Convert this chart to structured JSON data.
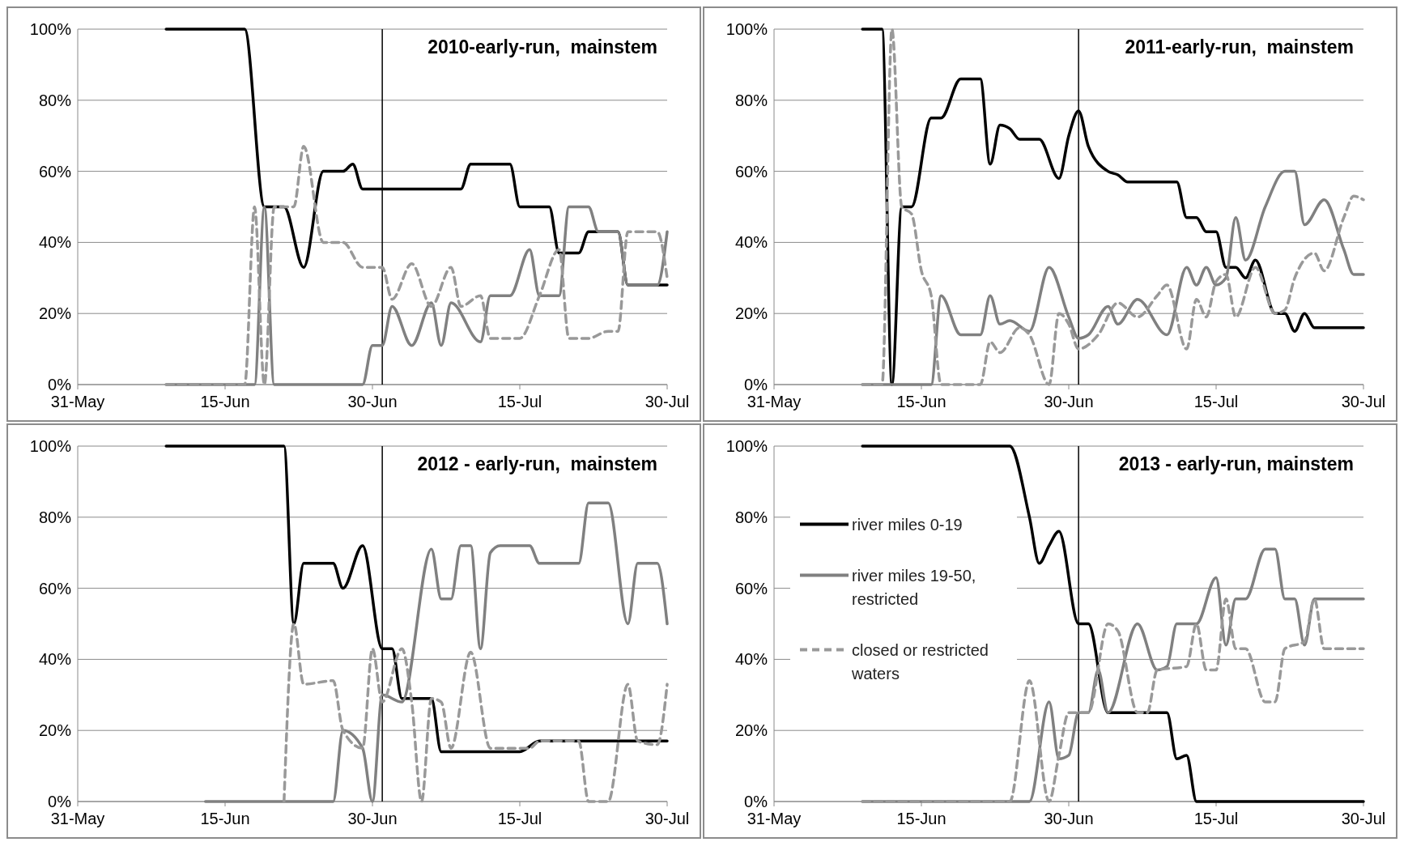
{
  "chart_data": [
    {
      "type": "line",
      "title": "2010-early-run,  mainstem",
      "xlim": [
        "--05-31",
        "--07-30"
      ],
      "xticks": [
        {
          "value": "--05-31",
          "label": "31-May"
        },
        {
          "value": "--06-15",
          "label": "15-Jun"
        },
        {
          "value": "--06-30",
          "label": "30-Jun"
        },
        {
          "value": "--07-15",
          "label": "15-Jul"
        },
        {
          "value": "--07-30",
          "label": "30-Jul"
        }
      ],
      "ylim": [
        0,
        100
      ],
      "yticks": [
        {
          "value": 0,
          "label": "0%"
        },
        {
          "value": 20,
          "label": "20%"
        },
        {
          "value": 40,
          "label": "40%"
        },
        {
          "value": 60,
          "label": "60%"
        },
        {
          "value": 80,
          "label": "80%"
        },
        {
          "value": 100,
          "label": "100%"
        }
      ],
      "grid": "y",
      "legend": false,
      "marker": "none",
      "ref_lines": [
        {
          "axis": "x",
          "value": "--07-01",
          "color": "#000000"
        }
      ],
      "series": [
        {
          "color": "#000000",
          "line_style": "solid",
          "x": [
            "--06-09",
            "--06-17",
            "--06-19",
            "--06-21",
            "--06-23",
            "--06-25",
            "--06-27",
            "--06-28",
            "--06-29",
            "--07-09",
            "--07-10",
            "--07-14",
            "--07-15",
            "--07-18",
            "--07-19",
            "--07-21",
            "--07-22",
            "--07-25",
            "--07-26",
            "--07-30"
          ],
          "values": [
            100,
            100,
            50,
            50,
            33,
            60,
            60,
            62,
            55,
            55,
            62,
            62,
            50,
            50,
            37,
            37,
            43,
            43,
            28,
            28
          ]
        },
        {
          "color": "#808080",
          "line_style": "solid",
          "x": [
            "--06-09",
            "--06-18",
            "--06-19",
            "--06-20",
            "--06-29",
            "--06-30",
            "--07-01",
            "--07-02",
            "--07-04",
            "--07-06",
            "--07-07",
            "--07-08",
            "--07-11",
            "--07-12",
            "--07-14",
            "--07-16",
            "--07-17",
            "--07-19",
            "--07-20",
            "--07-22",
            "--07-23",
            "--07-25",
            "--07-26",
            "--07-29",
            "--07-30"
          ],
          "values": [
            0,
            0,
            50,
            0,
            0,
            11,
            11,
            22,
            11,
            23,
            11,
            23,
            12,
            25,
            25,
            38,
            25,
            25,
            50,
            50,
            43,
            43,
            28,
            28,
            43
          ]
        },
        {
          "color": "#999999",
          "line_style": "dashed",
          "x": [
            "--06-09",
            "--06-17",
            "--06-18",
            "--06-19",
            "--06-20",
            "--06-22",
            "--06-23",
            "--06-25",
            "--06-27",
            "--06-29",
            "--07-01",
            "--07-02",
            "--07-04",
            "--07-06",
            "--07-08",
            "--07-09",
            "--07-11",
            "--07-12",
            "--07-15",
            "--07-17",
            "--07-19",
            "--07-20",
            "--07-22",
            "--07-24",
            "--07-25",
            "--07-26",
            "--07-29",
            "--07-30"
          ],
          "values": [
            0,
            0,
            50,
            0,
            50,
            50,
            67,
            40,
            40,
            33,
            33,
            24,
            34,
            22,
            33,
            22,
            25,
            13,
            13,
            25,
            38,
            13,
            13,
            15,
            15,
            43,
            43,
            30
          ]
        }
      ]
    },
    {
      "type": "line",
      "title": "2011-early-run,  mainstem",
      "xlim": [
        "--05-31",
        "--07-30"
      ],
      "xticks": [
        {
          "value": "--05-31",
          "label": "31-May"
        },
        {
          "value": "--06-15",
          "label": "15-Jun"
        },
        {
          "value": "--06-30",
          "label": "30-Jun"
        },
        {
          "value": "--07-15",
          "label": "15-Jul"
        },
        {
          "value": "--07-30",
          "label": "30-Jul"
        }
      ],
      "ylim": [
        0,
        100
      ],
      "yticks": [
        {
          "value": 0,
          "label": "0%"
        },
        {
          "value": 20,
          "label": "20%"
        },
        {
          "value": 40,
          "label": "40%"
        },
        {
          "value": 60,
          "label": "60%"
        },
        {
          "value": 80,
          "label": "80%"
        },
        {
          "value": 100,
          "label": "100%"
        }
      ],
      "grid": "y",
      "legend": false,
      "marker": "none",
      "ref_lines": [
        {
          "axis": "x",
          "value": "--07-01",
          "color": "#000000"
        }
      ],
      "series": [
        {
          "color": "#000000",
          "line_style": "solid",
          "x": [
            "--06-09",
            "--06-11",
            "--06-12",
            "--06-13",
            "--06-14",
            "--06-16",
            "--06-17",
            "--06-19",
            "--06-21",
            "--06-22",
            "--06-23",
            "--06-24",
            "--06-25",
            "--06-27",
            "--06-29",
            "--06-30",
            "--07-01",
            "--07-02",
            "--07-04",
            "--07-05",
            "--07-06",
            "--07-11",
            "--07-12",
            "--07-13",
            "--07-14",
            "--07-15",
            "--07-16",
            "--07-17",
            "--07-18",
            "--07-19",
            "--07-21",
            "--07-22",
            "--07-23",
            "--07-24",
            "--07-25",
            "--07-30"
          ],
          "values": [
            100,
            100,
            0,
            50,
            50,
            75,
            75,
            86,
            86,
            62,
            73,
            72,
            69,
            69,
            58,
            70,
            77,
            67,
            60,
            59,
            57,
            57,
            47,
            47,
            43,
            43,
            33,
            33,
            30,
            35,
            20,
            20,
            15,
            20,
            16,
            16
          ]
        },
        {
          "color": "#808080",
          "line_style": "solid",
          "x": [
            "--06-09",
            "--06-16",
            "--06-17",
            "--06-19",
            "--06-21",
            "--06-22",
            "--06-23",
            "--06-24",
            "--06-26",
            "--06-28",
            "--06-30",
            "--07-01",
            "--07-02",
            "--07-04",
            "--07-05",
            "--07-07",
            "--07-10",
            "--07-12",
            "--07-13",
            "--07-14",
            "--07-15",
            "--07-16",
            "--07-17",
            "--07-18",
            "--07-20",
            "--07-22",
            "--07-23",
            "--07-24",
            "--07-26",
            "--07-28",
            "--07-29",
            "--07-30"
          ],
          "values": [
            0,
            0,
            25,
            14,
            14,
            25,
            17,
            18,
            15,
            33,
            19,
            13,
            14,
            22,
            17,
            24,
            14,
            33,
            28,
            33,
            28,
            30,
            47,
            35,
            50,
            60,
            60,
            45,
            52,
            38,
            31,
            31
          ]
        },
        {
          "color": "#999999",
          "line_style": "dashed",
          "x": [
            "--06-09",
            "--06-11",
            "--06-12",
            "--06-13",
            "--06-14",
            "--06-15",
            "--06-16",
            "--06-17",
            "--06-21",
            "--06-22",
            "--06-23",
            "--06-25",
            "--06-26",
            "--06-28",
            "--06-29",
            "--06-30",
            "--07-01",
            "--07-03",
            "--07-05",
            "--07-07",
            "--07-09",
            "--07-10",
            "--07-12",
            "--07-13",
            "--07-14",
            "--07-15",
            "--07-16",
            "--07-17",
            "--07-19",
            "--07-21",
            "--07-22",
            "--07-23",
            "--07-25",
            "--07-26",
            "--07-28",
            "--07-29",
            "--07-30"
          ],
          "values": [
            0,
            0,
            100,
            50,
            48,
            32,
            25,
            0,
            0,
            12,
            9,
            16,
            14,
            0,
            20,
            17,
            10,
            14,
            23,
            19,
            25,
            28,
            10,
            24,
            19,
            29,
            31,
            19,
            33,
            20,
            21,
            30,
            37,
            32,
            47,
            53,
            52
          ]
        }
      ]
    },
    {
      "type": "line",
      "title": "2012 - early-run,  mainstem",
      "xlim": [
        "--05-31",
        "--07-30"
      ],
      "xticks": [
        {
          "value": "--05-31",
          "label": "31-May"
        },
        {
          "value": "--06-15",
          "label": "15-Jun"
        },
        {
          "value": "--06-30",
          "label": "30-Jun"
        },
        {
          "value": "--07-15",
          "label": "15-Jul"
        },
        {
          "value": "--07-30",
          "label": "30-Jul"
        }
      ],
      "ylim": [
        0,
        100
      ],
      "yticks": [
        {
          "value": 0,
          "label": "0%"
        },
        {
          "value": 20,
          "label": "20%"
        },
        {
          "value": 40,
          "label": "40%"
        },
        {
          "value": 60,
          "label": "60%"
        },
        {
          "value": 80,
          "label": "80%"
        },
        {
          "value": 100,
          "label": "100%"
        }
      ],
      "grid": "y",
      "legend": false,
      "marker": "none",
      "ref_lines": [
        {
          "axis": "x",
          "value": "--07-01",
          "color": "#000000"
        }
      ],
      "series": [
        {
          "color": "#000000",
          "line_style": "solid",
          "x": [
            "--06-09",
            "--06-21",
            "--06-22",
            "--06-23",
            "--06-26",
            "--06-27",
            "--06-29",
            "--07-01",
            "--07-02",
            "--07-03",
            "--07-06",
            "--07-07",
            "--07-15",
            "--07-17",
            "--07-30"
          ],
          "values": [
            100,
            100,
            50,
            67,
            67,
            60,
            72,
            43,
            43,
            29,
            29,
            14,
            14,
            17,
            17
          ]
        },
        {
          "color": "#808080",
          "line_style": "solid",
          "x": [
            "--06-13",
            "--06-26",
            "--06-27",
            "--06-29",
            "--06-30",
            "--07-01",
            "--07-03",
            "--07-06",
            "--07-07",
            "--07-08",
            "--07-09",
            "--07-10",
            "--07-11",
            "--07-12",
            "--07-13",
            "--07-16",
            "--07-17",
            "--07-21",
            "--07-22",
            "--07-24",
            "--07-26",
            "--07-27",
            "--07-29",
            "--07-30"
          ],
          "values": [
            0,
            0,
            20,
            15,
            0,
            30,
            28,
            71,
            57,
            57,
            72,
            72,
            43,
            70,
            72,
            72,
            67,
            67,
            84,
            84,
            50,
            67,
            67,
            50
          ]
        },
        {
          "color": "#999999",
          "line_style": "dashed",
          "x": [
            "--06-21",
            "--06-22",
            "--06-23",
            "--06-26",
            "--06-27",
            "--06-29",
            "--06-30",
            "--07-01",
            "--07-03",
            "--07-04",
            "--07-05",
            "--07-06",
            "--07-07",
            "--07-08",
            "--07-10",
            "--07-12",
            "--07-16",
            "--07-17",
            "--07-21",
            "--07-22",
            "--07-24",
            "--07-26",
            "--07-27",
            "--07-29",
            "--07-30"
          ],
          "values": [
            0,
            50,
            33,
            34,
            20,
            15,
            43,
            28,
            43,
            28,
            0,
            29,
            28,
            15,
            42,
            15,
            15,
            17,
            17,
            0,
            0,
            33,
            17,
            16,
            33
          ]
        }
      ]
    },
    {
      "type": "line",
      "title": "2013 - early-run, mainstem",
      "xlim": [
        "--05-31",
        "--07-30"
      ],
      "xticks": [
        {
          "value": "--05-31",
          "label": "31-May"
        },
        {
          "value": "--06-15",
          "label": "15-Jun"
        },
        {
          "value": "--06-30",
          "label": "30-Jun"
        },
        {
          "value": "--07-15",
          "label": "15-Jul"
        },
        {
          "value": "--07-30",
          "label": "30-Jul"
        }
      ],
      "ylim": [
        0,
        100
      ],
      "yticks": [
        {
          "value": 0,
          "label": "0%"
        },
        {
          "value": 20,
          "label": "20%"
        },
        {
          "value": 40,
          "label": "40%"
        },
        {
          "value": 60,
          "label": "60%"
        },
        {
          "value": 80,
          "label": "80%"
        },
        {
          "value": 100,
          "label": "100%"
        }
      ],
      "grid": "y",
      "legend": "left",
      "marker": "none",
      "ref_lines": [
        {
          "axis": "x",
          "value": "--07-01",
          "color": "#000000"
        }
      ],
      "series": [
        {
          "name": "river miles 0-19",
          "color": "#000000",
          "line_style": "solid",
          "x": [
            "--06-09",
            "--06-24",
            "--06-26",
            "--06-27",
            "--06-28",
            "--06-29",
            "--07-01",
            "--07-02",
            "--07-04",
            "--07-10",
            "--07-11",
            "--07-12",
            "--07-13",
            "--07-30"
          ],
          "values": [
            100,
            100,
            80,
            67,
            72,
            76,
            50,
            50,
            25,
            25,
            12,
            13,
            0,
            0
          ]
        },
        {
          "name": "river miles 19-50, restricted",
          "color": "#808080",
          "line_style": "solid",
          "x": [
            "--06-09",
            "--06-26",
            "--06-28",
            "--06-29",
            "--06-30",
            "--07-01",
            "--07-02",
            "--07-03",
            "--07-04",
            "--07-07",
            "--07-09",
            "--07-10",
            "--07-11",
            "--07-13",
            "--07-15",
            "--07-16",
            "--07-17",
            "--07-18",
            "--07-20",
            "--07-21",
            "--07-22",
            "--07-23",
            "--07-24",
            "--07-25",
            "--07-30"
          ],
          "values": [
            0,
            0,
            28,
            12,
            13,
            25,
            25,
            37,
            25,
            50,
            37,
            38,
            50,
            50,
            63,
            44,
            57,
            57,
            71,
            71,
            57,
            57,
            44,
            57,
            57
          ]
        },
        {
          "name": "closed or restricted waters",
          "color": "#999999",
          "line_style": "dashed",
          "x": [
            "--06-09",
            "--06-24",
            "--06-26",
            "--06-28",
            "--06-29",
            "--06-30",
            "--07-02",
            "--07-04",
            "--07-05",
            "--07-07",
            "--07-08",
            "--07-09",
            "--07-12",
            "--07-13",
            "--07-14",
            "--07-15",
            "--07-16",
            "--07-17",
            "--07-18",
            "--07-20",
            "--07-21",
            "--07-22",
            "--07-24",
            "--07-25",
            "--07-26",
            "--07-30"
          ],
          "values": [
            0,
            0,
            34,
            0,
            13,
            25,
            25,
            50,
            48,
            25,
            25,
            37,
            38,
            50,
            37,
            37,
            57,
            43,
            43,
            28,
            28,
            43,
            45,
            57,
            43,
            43
          ]
        }
      ]
    }
  ]
}
